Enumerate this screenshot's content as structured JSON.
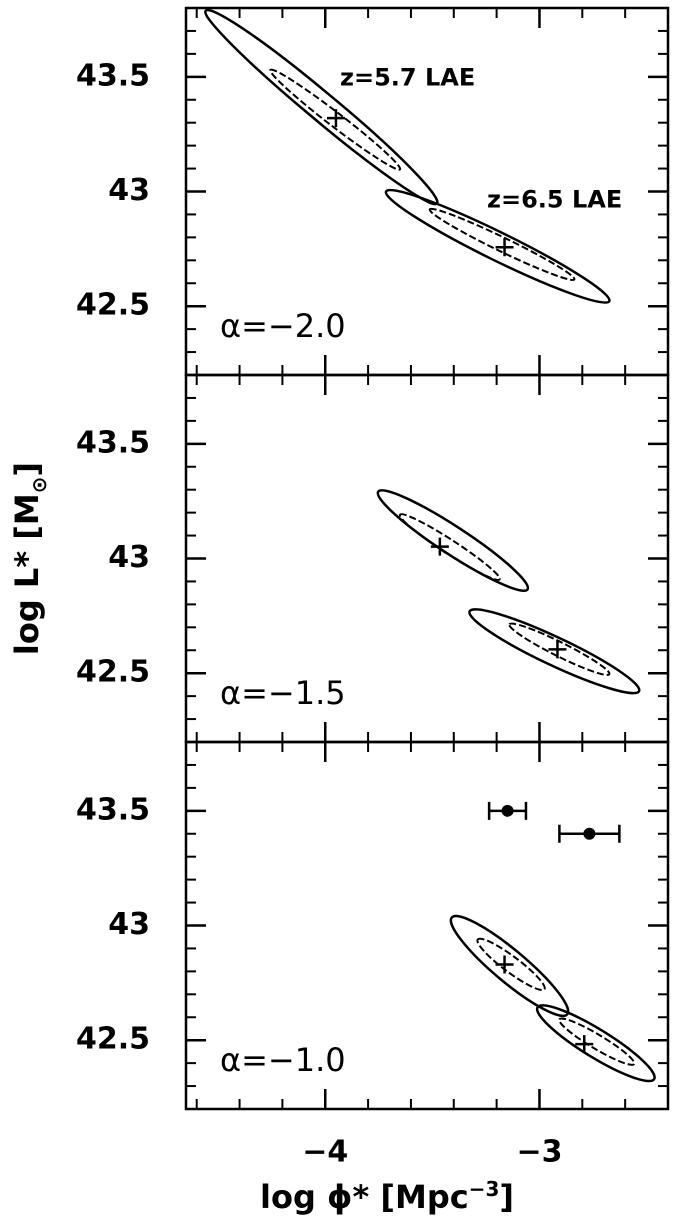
{
  "chart_data": [
    {
      "type": "contour",
      "annotation": "α=−2.0",
      "xlim": [
        -4.65,
        -2.4
      ],
      "xticks": [
        -4,
        -3
      ],
      "xminorticks": [
        -4.6,
        -4.4,
        -4.2,
        -3.8,
        -3.6,
        -3.4,
        -3.2,
        -2.8,
        -2.6
      ],
      "ylim": [
        42.2,
        43.8
      ],
      "yticks": [
        42.5,
        43,
        43.5
      ],
      "yminorticks": [
        42.3,
        42.4,
        42.6,
        42.7,
        42.8,
        42.9,
        43.1,
        43.2,
        43.3,
        43.4,
        43.6,
        43.7
      ],
      "series": [
        {
          "name": "z=5.7 LAE",
          "color": "#000000",
          "contours": [
            {
              "x": [
                -4.55,
                -3.988,
                -3.51,
                -4.072
              ],
              "y": [
                43.76,
                43.427,
                42.95,
                43.334
              ]
            },
            {
              "x": [
                -4.256,
                -3.933,
                -3.651,
                -3.973
              ],
              "y": [
                43.53,
                43.337,
                43.096,
                43.289
              ]
            }
          ],
          "best": {
            "x": -3.95,
            "y": 43.32
          }
        },
        {
          "name": "z=6.5 LAE",
          "color": "#000000",
          "contours": [
            {
              "x": [
                -3.716,
                -3.166,
                -2.674,
                -3.224
              ],
              "y": [
                43.0,
                42.816,
                42.522,
                42.706
              ]
            },
            {
              "x": [
                -3.512,
                -3.161,
                -2.837,
                -3.189
              ],
              "y": [
                42.922,
                42.797,
                42.617,
                42.742
              ]
            }
          ],
          "best": {
            "x": -3.163,
            "y": 42.757
          }
        }
      ]
    },
    {
      "type": "contour",
      "annotation": "α=−1.5",
      "ylabel": "log L* [M",
      "xlim": [
        -4.65,
        -2.4
      ],
      "xticks": [
        -4,
        -3
      ],
      "xminorticks": [
        -4.6,
        -4.4,
        -4.2,
        -3.8,
        -3.6,
        -3.4,
        -3.2,
        -2.8,
        -2.6
      ],
      "ylim": [
        42.2,
        43.8
      ],
      "yticks": [
        42.5,
        43,
        43.5
      ],
      "yminorticks": [
        42.3,
        42.4,
        42.6,
        42.7,
        42.8,
        42.9,
        43.1,
        43.2,
        43.3,
        43.4,
        43.6,
        43.7
      ],
      "series": [
        {
          "color": "#000000",
          "contours": [
            {
              "x": [
                -3.753,
                -3.369,
                -3.056,
                -3.44
              ],
              "y": [
                43.291,
                43.129,
                42.865,
                43.028
              ]
            },
            {
              "x": [
                -3.651,
                -3.401,
                -3.186,
                -3.436
              ],
              "y": [
                43.191,
                43.076,
                42.909,
                43.024
              ]
            }
          ],
          "best": {
            "x": -3.465,
            "y": 43.052
          }
        },
        {
          "color": "#000000",
          "contours": [
            {
              "x": [
                -3.326,
                -2.902,
                -2.535,
                -2.958
              ],
              "y": [
                42.77,
                42.651,
                42.422,
                42.54
              ]
            },
            {
              "x": [
                -3.14,
                -2.893,
                -2.674,
                -2.922
              ],
              "y": [
                42.713,
                42.632,
                42.496,
                42.577
              ]
            }
          ],
          "best": {
            "x": -2.916,
            "y": 42.604
          }
        }
      ]
    },
    {
      "type": "contour",
      "annotation": "α=−1.0",
      "xlabel": "log ϕ* [Mpc",
      "xlim": [
        -4.65,
        -2.4
      ],
      "xticks": [
        {
          "value": -4,
          "label": "−4"
        },
        {
          "value": -3,
          "label": "−3"
        }
      ],
      "xminorticks": [
        -4.6,
        -4.4,
        -4.2,
        -3.8,
        -3.6,
        -3.4,
        -3.2,
        -2.8,
        -2.6
      ],
      "ylim": [
        42.2,
        43.8
      ],
      "yticks": [
        42.5,
        43,
        43.5
      ],
      "yminorticks": [
        42.3,
        42.4,
        42.6,
        42.7,
        42.8,
        42.9,
        43.1,
        43.2,
        43.3,
        43.4,
        43.6,
        43.7
      ],
      "series": [
        {
          "color": "#000000",
          "contours": [
            {
              "x": [
                -3.409,
                -3.092,
                -2.87,
                -3.187
              ],
              "y": [
                43.035,
                42.877,
                42.613,
                42.77
              ]
            },
            {
              "x": [
                -3.288,
                -3.11,
                -2.977,
                -3.155
              ],
              "y": [
                42.939,
                42.858,
                42.722,
                42.803
              ]
            }
          ],
          "best": {
            "x": -3.163,
            "y": 42.83
          }
        },
        {
          "color": "#000000",
          "contours": [
            {
              "x": [
                -3.009,
                -2.703,
                -2.465,
                -2.771
              ],
              "y": [
                42.643,
                42.539,
                42.33,
                42.435
              ]
            },
            {
              "x": [
                -2.907,
                -2.716,
                -2.558,
                -2.749
              ],
              "y": [
                42.591,
                42.52,
                42.396,
                42.467
              ]
            }
          ],
          "best": {
            "x": -2.791,
            "y": 42.483
          }
        }
      ],
      "points": {
        "x": [
          -3.149,
          -2.767
        ],
        "y": [
          43.5,
          43.4
        ],
        "xerr": [
          0.086,
          0.14
        ],
        "color": "#000000"
      }
    }
  ]
}
